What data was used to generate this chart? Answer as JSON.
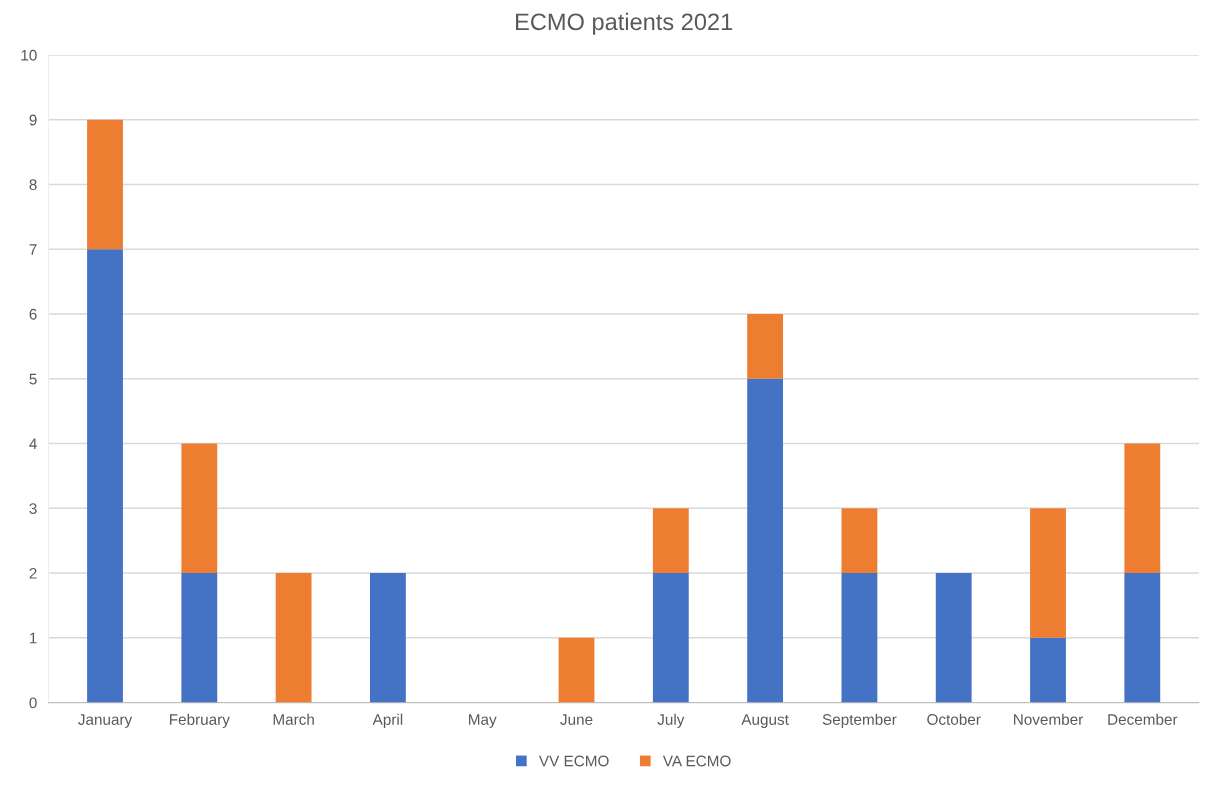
{
  "chart_data": {
    "type": "bar",
    "title": "ECMO patients 2021",
    "categories": [
      "January",
      "February",
      "March",
      "April",
      "May",
      "June",
      "July",
      "August",
      "September",
      "October",
      "November",
      "December"
    ],
    "series": [
      {
        "name": "VV ECMO",
        "color": "#4472c4",
        "values": [
          7,
          2,
          0,
          2,
          0,
          0,
          2,
          5,
          2,
          2,
          1,
          2
        ]
      },
      {
        "name": "VA ECMO",
        "color": "#ed7d31",
        "values": [
          2,
          2,
          2,
          0,
          0,
          1,
          1,
          1,
          1,
          0,
          2,
          2
        ]
      }
    ],
    "stacked": true,
    "ylim": [
      0,
      10
    ],
    "yticks": [
      0,
      1,
      2,
      3,
      4,
      5,
      6,
      7,
      8,
      9,
      10
    ],
    "grid": "y",
    "legend": "bottom"
  }
}
